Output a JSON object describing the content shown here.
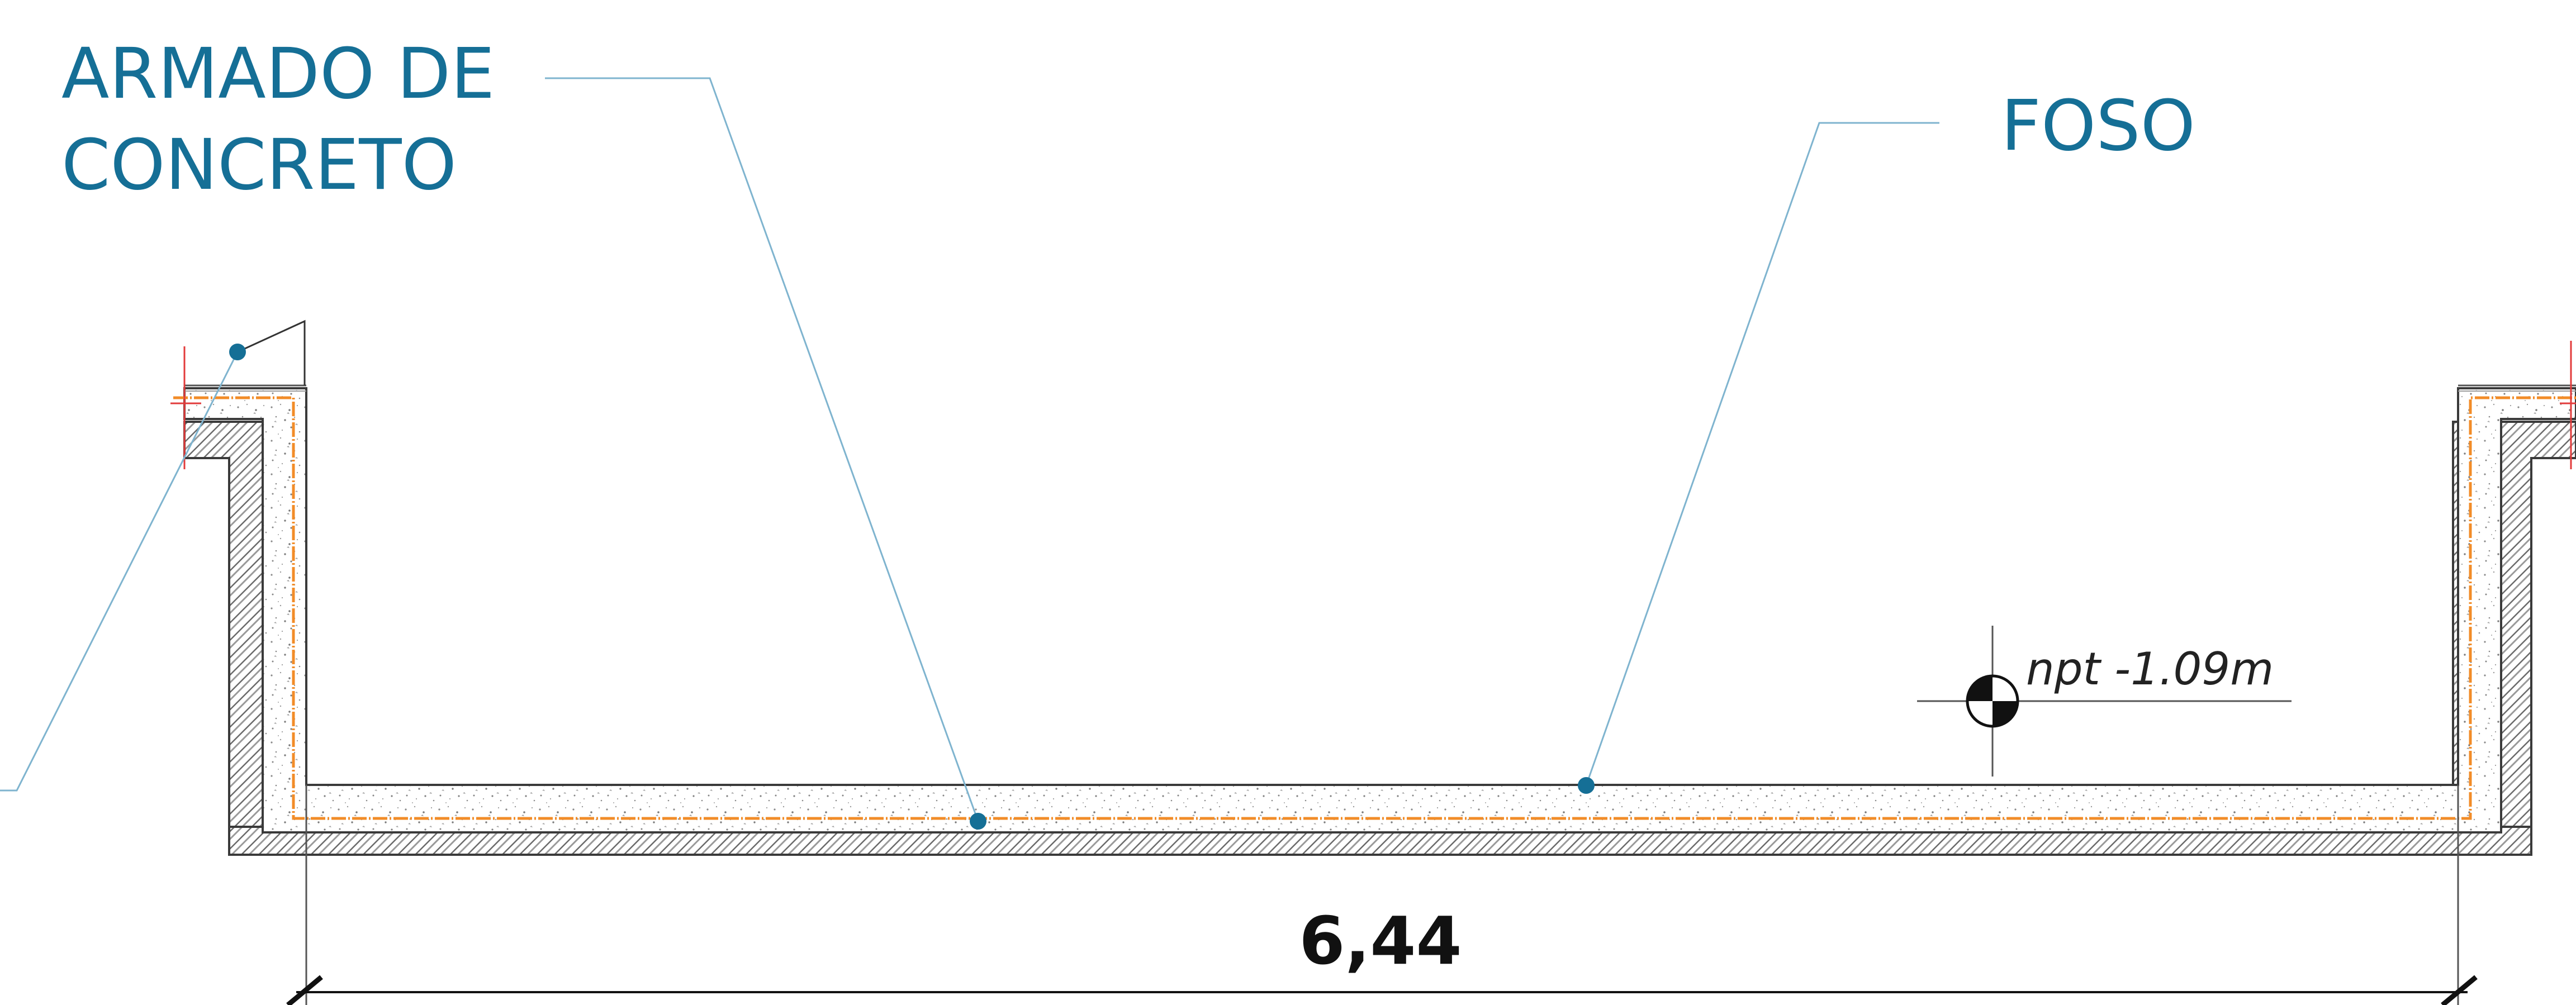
{
  "labels": {
    "rebar_line1": "ARMADO DE",
    "rebar_line2": "CONCRETO",
    "pit": "FOSO",
    "level": "npt -1.09m",
    "dimension": "6,44"
  },
  "colors": {
    "label_blue": "#156f96",
    "leader_line": "#7fb4cf",
    "rebar": "#f28c28",
    "red_marks": "#e23b3b",
    "outline": "#3a3a3a",
    "hatch": "#555555",
    "concrete_dots": "#8a8a8a"
  },
  "icons": {
    "level_marker": "level-marker-icon"
  }
}
